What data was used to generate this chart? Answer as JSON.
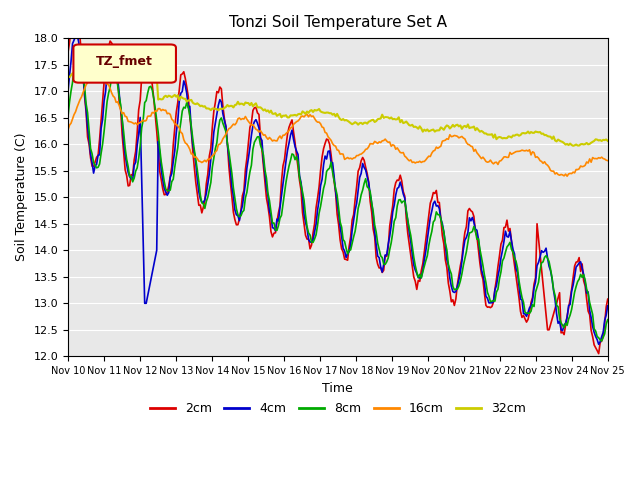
{
  "title": "Tonzi Soil Temperature Set A",
  "xlabel": "Time",
  "ylabel": "Soil Temperature (C)",
  "ylim": [
    12.0,
    18.0
  ],
  "yticks": [
    12.0,
    12.5,
    13.0,
    13.5,
    14.0,
    14.5,
    15.0,
    15.5,
    16.0,
    16.5,
    17.0,
    17.5,
    18.0
  ],
  "xtick_labels": [
    "Nov 10",
    "Nov 11",
    "Nov 12",
    "Nov 13",
    "Nov 14",
    "Nov 15",
    "Nov 16",
    "Nov 17",
    "Nov 18",
    "Nov 19",
    "Nov 20",
    "Nov 21",
    "Nov 22",
    "Nov 23",
    "Nov 24",
    "Nov 25"
  ],
  "legend_label": "TZ_fmet",
  "series_labels": [
    "2cm",
    "4cm",
    "8cm",
    "16cm",
    "32cm"
  ],
  "series_colors": [
    "#dd0000",
    "#0000cc",
    "#00aa00",
    "#ff8800",
    "#cccc00"
  ],
  "background_color": "#e8e8e8",
  "fig_color": "#ffffff",
  "n_points": 360,
  "n_days": 15
}
